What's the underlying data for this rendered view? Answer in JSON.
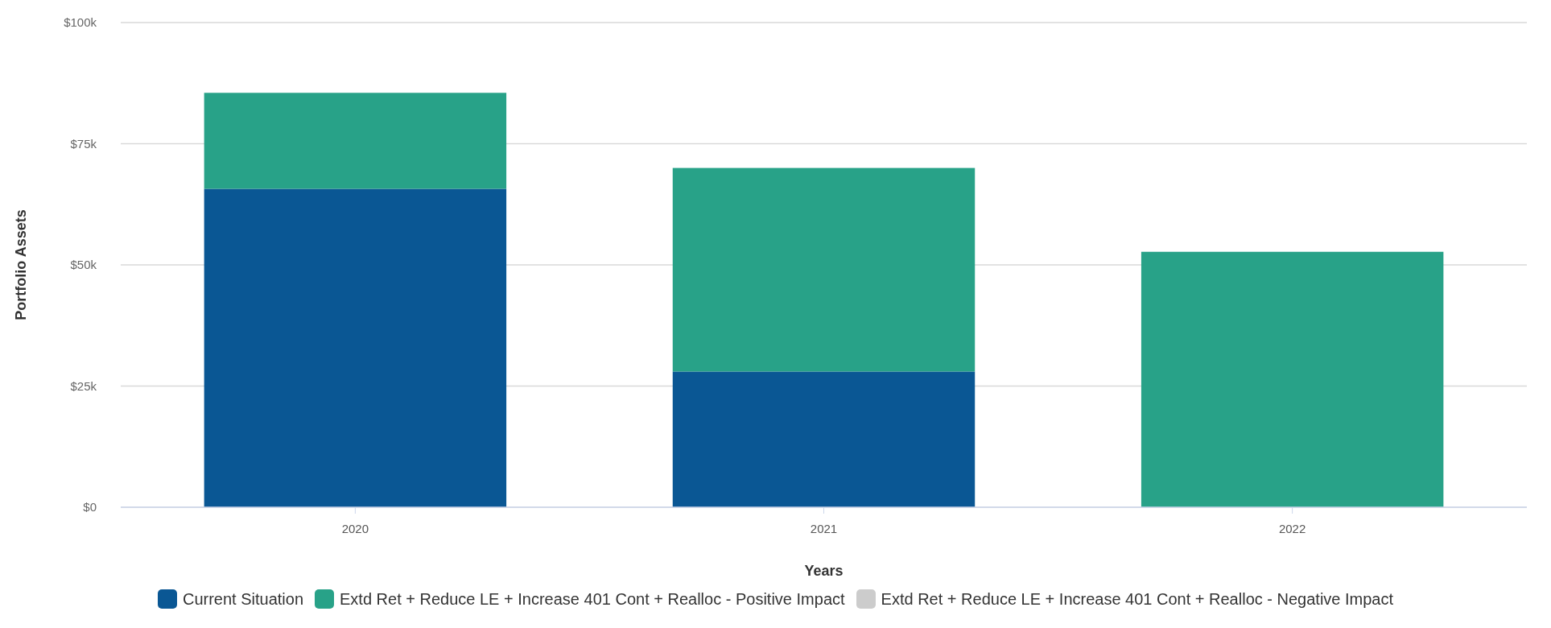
{
  "chart_data": {
    "type": "bar",
    "stacked": true,
    "xlabel": "Years",
    "ylabel": "Portfolio Assets",
    "categories": [
      "2020",
      "2021",
      "2022"
    ],
    "series": [
      {
        "name": "Current Situation",
        "color": "#0a5794",
        "values": [
          65.7,
          28.0,
          null
        ]
      },
      {
        "name": "Extd Ret + Reduce LE + Increase 401 Cont + Realloc - Positive Impact",
        "color": "#28a288",
        "values": [
          19.8,
          42.0,
          52.7
        ]
      },
      {
        "name": "Extd Ret + Reduce LE + Increase 401 Cont + Realloc - Negative Impact",
        "color": "#cccccc",
        "values": [
          null,
          null,
          null
        ]
      }
    ],
    "ylim": [
      0,
      100
    ],
    "yticks": [
      {
        "value": 0,
        "label": "$0"
      },
      {
        "value": 25,
        "label": "$25k"
      },
      {
        "value": 50,
        "label": "$50k"
      },
      {
        "value": 75,
        "label": "$75k"
      },
      {
        "value": 100,
        "label": "$100k"
      }
    ],
    "grid": "y",
    "legend": "bottom"
  }
}
